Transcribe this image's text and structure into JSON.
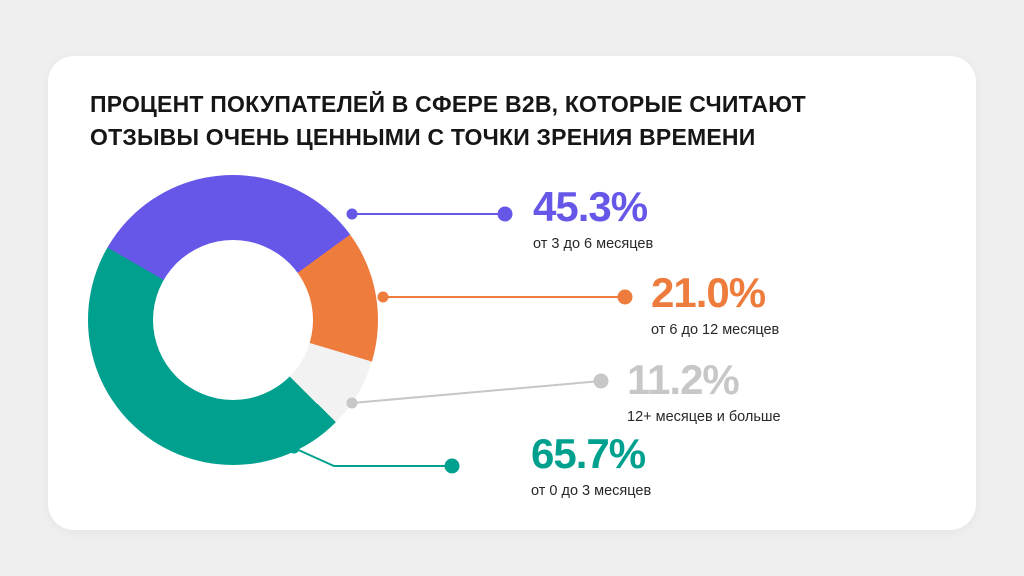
{
  "background_color": "#efefef",
  "card_color": "#ffffff",
  "title": {
    "line1": "ПРОЦЕНТ ПОКУПАТЕЛЕЙ В СФЕРЕ B2B, КОТОРЫЕ СЧИТАЮТ",
    "line2": "ОТЗЫВЫ ОЧЕНЬ ЦЕННЫМИ С ТОЧКИ ЗРЕНИЯ ВРЕМЕНИ"
  },
  "chart_data": {
    "type": "pie",
    "style": "donut",
    "title": "ПРОЦЕНТ ПОКУПАТЕЛЕЙ В СФЕРЕ B2B, КОТОРЫЕ СЧИТАЮТ ОТЗЫВЫ ОЧЕНЬ ЦЕННЫМИ С ТОЧКИ ЗРЕНИЯ ВРЕМЕНИ",
    "start_angle": 300,
    "legend_position": "right-callouts",
    "segments": [
      {
        "label": "от 3 до 6 месяцев",
        "value": 45.3,
        "display": "45.3%",
        "color": "#6657E8"
      },
      {
        "label": "от 6 до 12 месяцев",
        "value": 21.0,
        "display": "21.0%",
        "color": "#ED7C3D"
      },
      {
        "label": "12+ месяцев и больше",
        "value": 11.2,
        "display": "11.2%",
        "color": "#C7C7C7",
        "slice_color": "#F2F2F2"
      },
      {
        "label": "от 0 до 3 месяцев",
        "value": 65.7,
        "display": "65.7%",
        "color": "#00A08E"
      }
    ]
  }
}
